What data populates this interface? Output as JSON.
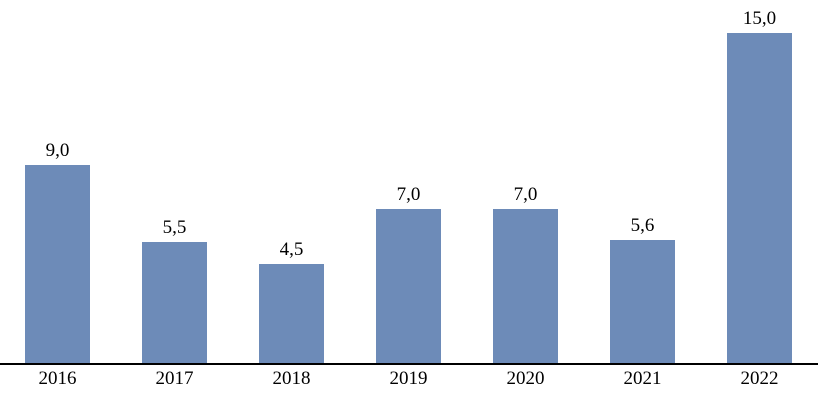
{
  "chart_data": {
    "type": "bar",
    "title": "",
    "xlabel": "",
    "ylabel": "",
    "categories": [
      "2016",
      "2017",
      "2018",
      "2019",
      "2020",
      "2021",
      "2022"
    ],
    "values": [
      9.0,
      5.5,
      4.5,
      7.0,
      7.0,
      5.6,
      15.0
    ],
    "value_labels": [
      "9,0",
      "5,5",
      "4,5",
      "7,0",
      "7,0",
      "5,6",
      "15,0"
    ],
    "ylim": [
      0,
      16.5
    ],
    "grid": false,
    "legend": false,
    "y_axis_visible": false,
    "x_axis_visible": true,
    "bar_color": "#6d8bb8",
    "axis_color": "#000000",
    "label_color": "#000000",
    "background_color": "#ffffff"
  }
}
